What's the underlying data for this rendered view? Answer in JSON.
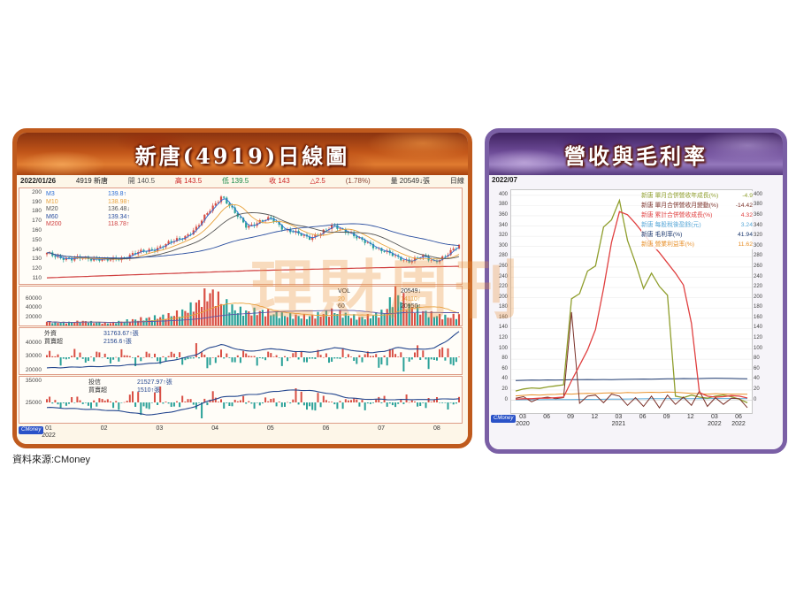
{
  "source_note": "資料來源:CMoney",
  "badge_label": "CMoney",
  "watermark": "理財周刊",
  "left_panel": {
    "title": "新唐(4919)日線圖",
    "info_bar": [
      {
        "t": "2022/01/26",
        "c": "#222222",
        "b": true
      },
      {
        "t": "4919 新唐",
        "c": "#222222",
        "b": false
      },
      {
        "t": "開 140.5",
        "c": "#555555",
        "b": false
      },
      {
        "t": "高 143.5",
        "c": "#cc2222",
        "b": false
      },
      {
        "t": "低 139.5",
        "c": "#1a8a4a",
        "b": false
      },
      {
        "t": "收 143",
        "c": "#cc2222",
        "b": false
      },
      {
        "t": "△2.5",
        "c": "#cc2222",
        "b": false
      },
      {
        "t": "(1.78%)",
        "c": "#8a4433",
        "b": false
      },
      {
        "t": "量 20549↓張",
        "c": "#333333",
        "b": false
      },
      {
        "t": "日線",
        "c": "#333333",
        "b": false
      }
    ],
    "ma_legend": [
      {
        "label": "M3",
        "value": "139.8↑",
        "color": "#2e6fd6"
      },
      {
        "label": "M10",
        "value": "138.98↑",
        "color": "#e8a23c"
      },
      {
        "label": "M20",
        "value": "136.48↓",
        "color": "#555555"
      },
      {
        "label": "M60",
        "value": "139.34↑",
        "color": "#2b4fa0"
      },
      {
        "label": "M200",
        "value": "118.78↑",
        "color": "#d04040"
      }
    ],
    "price_axis": [
      200,
      190,
      180,
      170,
      160,
      150,
      140,
      130,
      120,
      110
    ],
    "vol_legend": [
      {
        "label": "VOL",
        "value": "20549↓",
        "color": "#333333"
      },
      {
        "label": "20",
        "value": "14110↑",
        "color": "#e8a23c"
      },
      {
        "label": "60",
        "value": "20950↑",
        "color": "#333333"
      }
    ],
    "vol_axis": [
      "60000",
      "40000",
      "20000"
    ],
    "foreign": {
      "labels": [
        "外資",
        "買賣超"
      ],
      "values": [
        "31763.67↑張",
        "2156.6↑張"
      ],
      "value_color": "#24468e",
      "axis": [
        "40000",
        "30000",
        "20000"
      ]
    },
    "trust": {
      "labels": [
        "投信",
        "買賣超"
      ],
      "values": [
        "21527.97↑張",
        "1510↑張"
      ],
      "value_color": "#24468e",
      "axis": [
        "35000",
        "25000"
      ]
    },
    "x_labels": [
      "01",
      "02",
      "03",
      "04",
      "05",
      "06",
      "07",
      "08"
    ],
    "x_year": "2022"
  },
  "right_panel": {
    "title": "營收與毛利率",
    "date_label": "2022/07",
    "legend": [
      {
        "label": "新唐 單月合併營收年成長(%)",
        "value": "-4.9",
        "color": "#8f9e2d"
      },
      {
        "label": "新唐 單月合併營收月變動(%)",
        "value": "-14.42",
        "color": "#7a3028"
      },
      {
        "label": "新唐 累計合併營收成長(%)",
        "value": "4.32",
        "color": "#e04040"
      },
      {
        "label": "新唐 每股稅後盈餘(元)",
        "value": "3.24",
        "color": "#58a8d8"
      },
      {
        "label": "新唐 毛利率(%)",
        "value": "41.94",
        "color": "#1e3a70"
      },
      {
        "label": "新唐 營業利益率(%)",
        "value": "11.62",
        "color": "#e8902a"
      }
    ],
    "y_ticks": [
      400,
      380,
      360,
      340,
      320,
      300,
      280,
      260,
      240,
      220,
      200,
      180,
      160,
      140,
      120,
      100,
      80,
      60,
      40,
      20,
      0
    ],
    "x_ticks": [
      {
        "i": 1,
        "m": "03",
        "y": "2020"
      },
      {
        "i": 4,
        "m": "06",
        "y": ""
      },
      {
        "i": 7,
        "m": "09",
        "y": ""
      },
      {
        "i": 10,
        "m": "12",
        "y": ""
      },
      {
        "i": 13,
        "m": "03",
        "y": "2021"
      },
      {
        "i": 16,
        "m": "06",
        "y": ""
      },
      {
        "i": 19,
        "m": "09",
        "y": ""
      },
      {
        "i": 22,
        "m": "12",
        "y": ""
      },
      {
        "i": 25,
        "m": "03",
        "y": "2022"
      },
      {
        "i": 28,
        "m": "06",
        "y": "2022"
      }
    ]
  },
  "chart_data": [
    {
      "id": "price",
      "type": "candlestick",
      "title": "新唐(4919)日線圖",
      "x_range": [
        "2022/01",
        "2022/08"
      ],
      "ylim": [
        105,
        202
      ],
      "last_bar": {
        "date": "2022/01/26",
        "open": 140.5,
        "high": 143.5,
        "low": 139.5,
        "close": 143,
        "change": 2.5,
        "change_pct": 1.78,
        "volume": 20549
      },
      "close_anchors": [
        135,
        132,
        129,
        131,
        130,
        128,
        131,
        135,
        138,
        142,
        147,
        153,
        162,
        180,
        196,
        178,
        164,
        168,
        172,
        161,
        156,
        152,
        157,
        164,
        159,
        150,
        144,
        138,
        131,
        128,
        132,
        127,
        134,
        143
      ],
      "m200_anchors": [
        110,
        111.5,
        113,
        114.5,
        116,
        117.5,
        118.5,
        119.5,
        120.5,
        121.3,
        122
      ],
      "ma_values": {
        "M3": 139.8,
        "M10": 138.98,
        "M20": 136.48,
        "M60": 139.34,
        "M200": 118.78
      }
    },
    {
      "id": "volume",
      "type": "bar",
      "ylim": [
        0,
        80000
      ],
      "anchors": [
        8000,
        6000,
        7000,
        9000,
        6000,
        5000,
        9000,
        12000,
        15000,
        18000,
        22000,
        30000,
        45000,
        70000,
        52000,
        34000,
        28000,
        30000,
        26000,
        22000,
        20000,
        18000,
        24000,
        30000,
        22000,
        16000,
        20000,
        28000,
        72000,
        40000,
        30000,
        22000,
        18000,
        20549
      ]
    },
    {
      "id": "foreign_net",
      "type": "bar+line",
      "label": "外資買賣超",
      "ylim": [
        17000,
        50000
      ],
      "line_anchors": [
        21000,
        21200,
        21500,
        21800,
        22000,
        22300,
        22800,
        23500,
        24000,
        25000,
        26500,
        28500,
        31000,
        36000,
        38500,
        35500,
        33500,
        34000,
        35500,
        34200,
        33200,
        32800,
        33800,
        36200,
        34800,
        33200,
        32400,
        33200,
        36200,
        35200,
        34800,
        35800,
        41000,
        48000
      ]
    },
    {
      "id": "trust_net",
      "type": "bar+line",
      "label": "投信買賣超",
      "ylim": [
        16000,
        36000
      ],
      "line_anchors": [
        22500,
        22300,
        22000,
        21800,
        21500,
        21200,
        20800,
        20000,
        19200,
        19600,
        20600,
        21600,
        23200,
        25600,
        27200,
        27600,
        28200,
        28600,
        29600,
        30200,
        30400,
        30200,
        29400,
        28400,
        27000,
        26400,
        26200,
        26200,
        26000,
        26200,
        26000,
        26200,
        26300,
        26500
      ]
    },
    {
      "id": "revenue",
      "type": "line",
      "title": "營收與毛利率",
      "ylim": [
        -25,
        410
      ],
      "grid_step": 20,
      "legend_position": "top-right",
      "x": [
        "2020/02",
        "2020/03",
        "2020/04",
        "2020/05",
        "2020/06",
        "2020/07",
        "2020/08",
        "2020/09",
        "2020/10",
        "2020/11",
        "2020/12",
        "2021/01",
        "2021/02",
        "2021/03",
        "2021/04",
        "2021/05",
        "2021/06",
        "2021/07",
        "2021/08",
        "2021/09",
        "2021/10",
        "2021/11",
        "2021/12",
        "2022/01",
        "2022/02",
        "2022/03",
        "2022/04",
        "2022/05",
        "2022/06",
        "2022/07"
      ],
      "series": [
        {
          "name": "毛利率(%)",
          "color": "#1e3a70",
          "values": [
            38.5,
            38.8,
            39.2,
            39,
            39.5,
            39.2,
            39.6,
            40,
            40.2,
            40.4,
            40.2,
            40.5,
            40.3,
            40.6,
            40.8,
            41,
            41.3,
            41.1,
            41.5,
            41.8,
            42,
            42.3,
            42.1,
            42.4,
            42.8,
            43,
            42.8,
            42.5,
            42.2,
            41.94
          ]
        },
        {
          "name": "每股稅後盈餘(元)",
          "color": "#58a8d8",
          "values": [
            0.9,
            1,
            1.1,
            1,
            1.2,
            1.3,
            1.4,
            1.3,
            1.5,
            1.7,
            1.6,
            1.9,
            2.1,
            2.3,
            2.5,
            2.6,
            2.8,
            2.9,
            3,
            3.1,
            3,
            3.2,
            3.1,
            3.3,
            3.2,
            3.4,
            3.3,
            3.3,
            3.2,
            3.24
          ]
        },
        {
          "name": "營業利益率(%)",
          "color": "#e8902a",
          "values": [
            8.5,
            9.5,
            10.5,
            10,
            11,
            11.5,
            12.5,
            12,
            13,
            13.5,
            13,
            14,
            14.5,
            14,
            15,
            14.5,
            15,
            15.5,
            15,
            16,
            15.5,
            14.5,
            13.5,
            12.5,
            12,
            12.8,
            12.2,
            12,
            12,
            11.62
          ]
        },
        {
          "name": "單月合併營收年成長(%)",
          "color": "#8f9e2d",
          "values": [
            18,
            22,
            24,
            23,
            26,
            28,
            30,
            198,
            208,
            252,
            262,
            338,
            352,
            390,
            312,
            268,
            218,
            248,
            222,
            205,
            8,
            5,
            10,
            6,
            4,
            8,
            10,
            7,
            2,
            -4.9
          ]
        },
        {
          "name": "單月合併營收月變動(%)",
          "color": "#7a3028",
          "values": [
            4,
            7,
            -3,
            4,
            6,
            3,
            5,
            172,
            -6,
            8,
            10,
            -5,
            12,
            8,
            -10,
            5,
            -12,
            8,
            -15,
            10,
            -8,
            6,
            -10,
            18,
            -12,
            5,
            -8,
            4,
            3,
            -14.42
          ]
        },
        {
          "name": "累計合併營收成長(%)",
          "color": "#e04040",
          "values": [
            2,
            3,
            3,
            4,
            4,
            5,
            6,
            38,
            68,
            98,
            138,
            218,
            308,
            368,
            362,
            345,
            325,
            305,
            288,
            268,
            248,
            225,
            150,
            15,
            8,
            6,
            7,
            9,
            8,
            4.32
          ]
        }
      ]
    }
  ]
}
